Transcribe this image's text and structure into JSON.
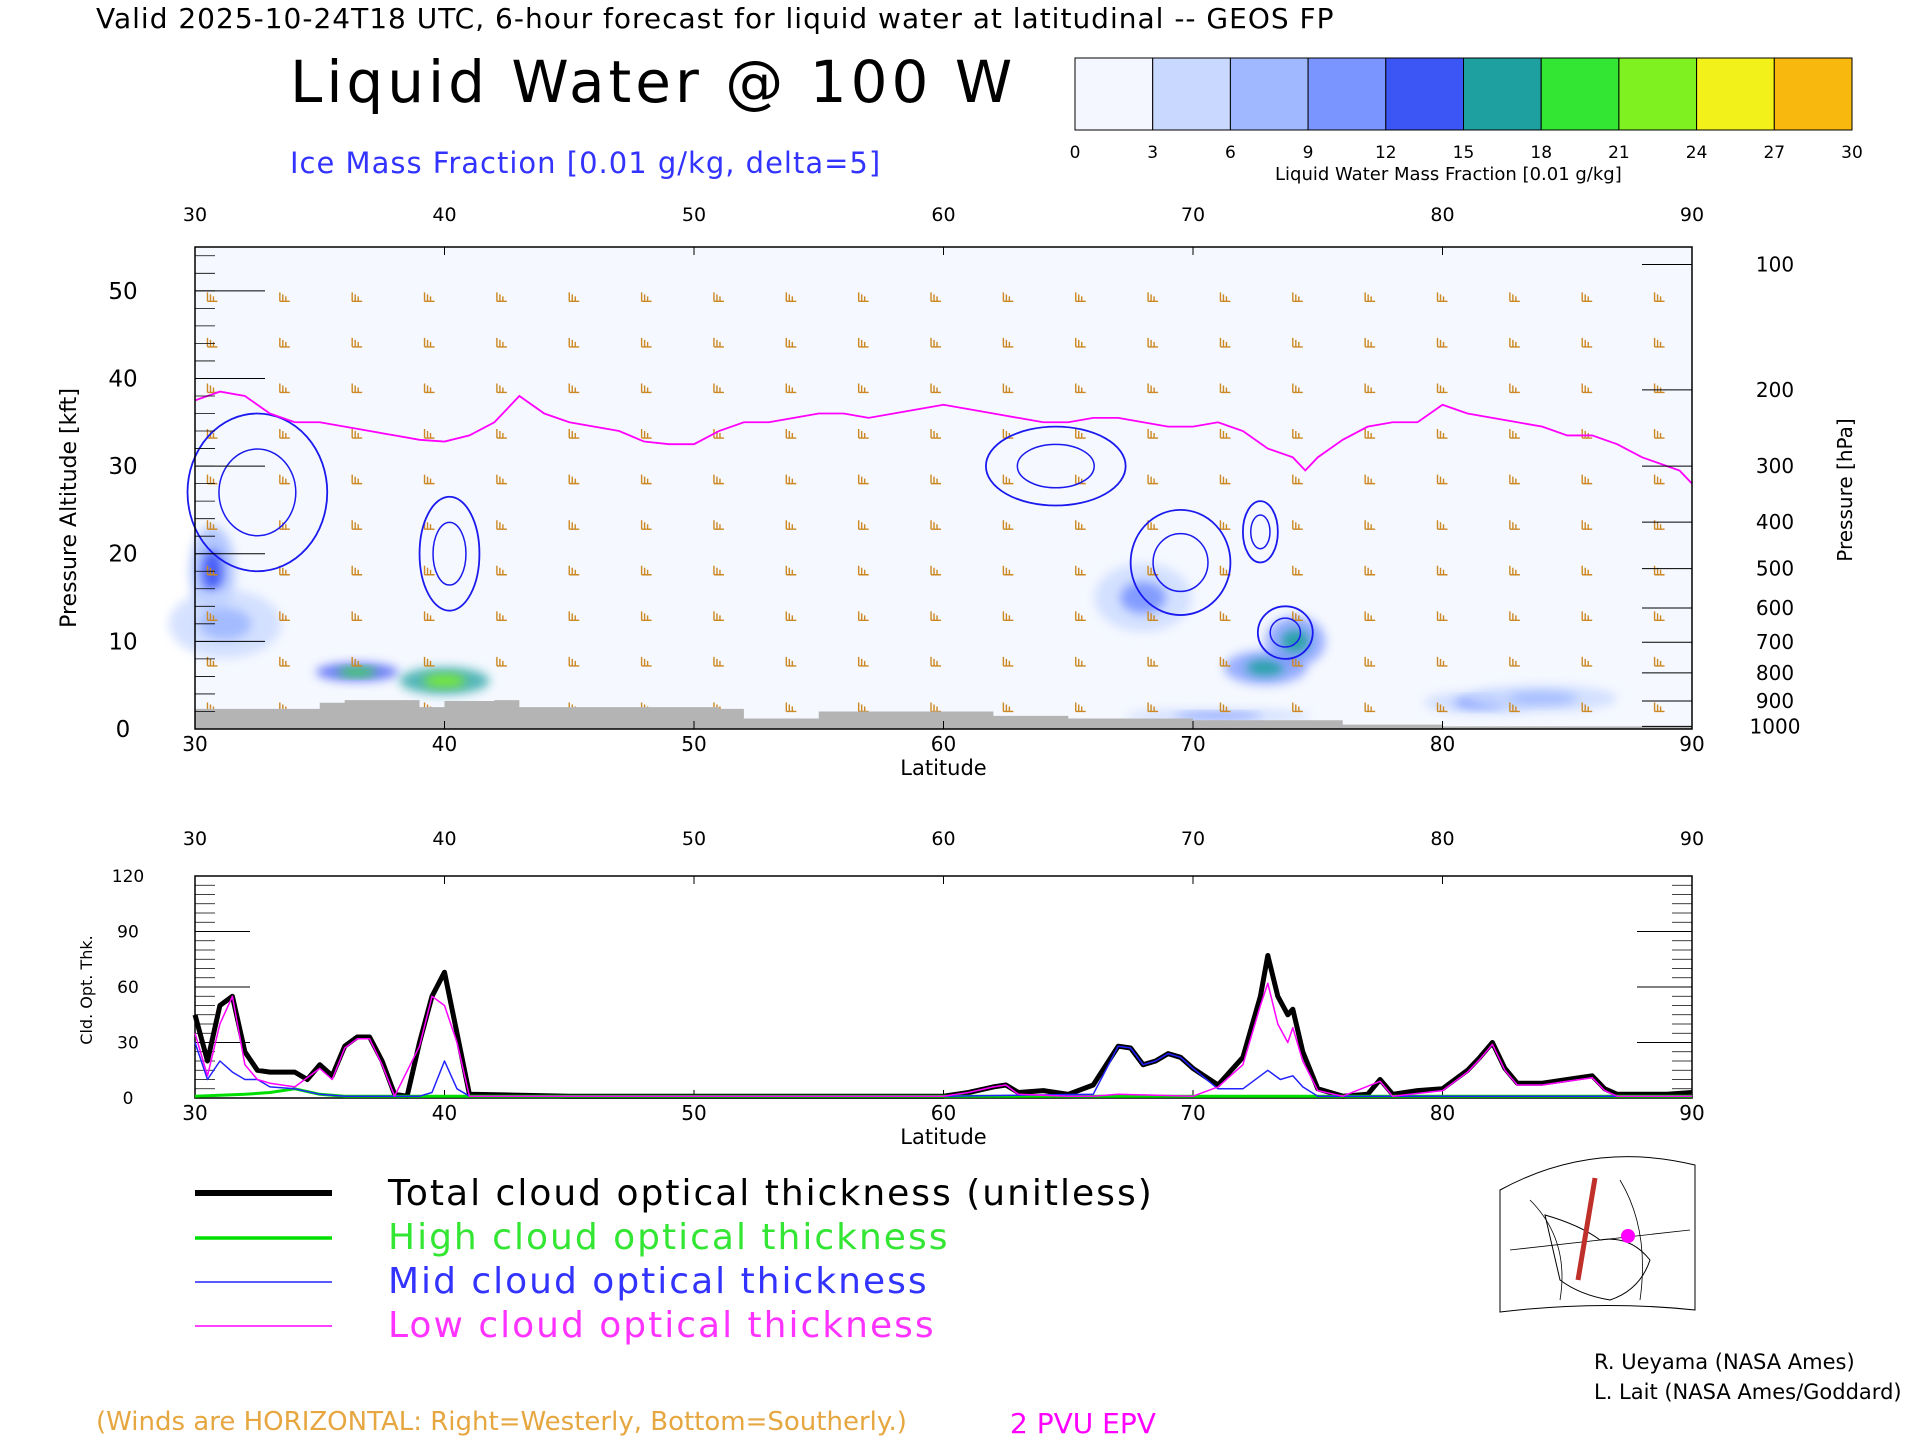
{
  "header": {
    "valid_line": "Valid 2025-10-24T18 UTC, 6-hour forecast for liquid water at latitudinal -- GEOS FP",
    "title": "Liquid Water @ 100 W",
    "ice_label": "Ice Mass Fraction [0.01 g/kg, delta=5]"
  },
  "colorbar": {
    "ticks": [
      "0",
      "3",
      "6",
      "9",
      "12",
      "15",
      "18",
      "21",
      "24",
      "27",
      "30"
    ],
    "colors": [
      "#f4f7ff",
      "#c8d8ff",
      "#9fb8ff",
      "#7a95ff",
      "#3c55f5",
      "#1fa0a0",
      "#33e633",
      "#7ff020",
      "#f2f21a",
      "#f9b80d",
      "#ff7a00"
    ],
    "label": "Liquid Water Mass Fraction [0.01 g/kg]"
  },
  "cross_section": {
    "top_ticks": [
      "30",
      "40",
      "50",
      "60",
      "70",
      "80",
      "90"
    ],
    "bottom_ticks": [
      "30",
      "40",
      "50",
      "60",
      "70",
      "80",
      "90"
    ],
    "xlabel": "Latitude",
    "ylabel": "Pressure Altitude [kft]",
    "y_ticks": [
      "0",
      "10",
      "20",
      "30",
      "40",
      "50"
    ],
    "right_label": "Pressure [hPa]",
    "right_ticks": [
      {
        "label": "100",
        "kft": 53
      },
      {
        "label": "200",
        "kft": 38.7
      },
      {
        "label": "300",
        "kft": 30
      },
      {
        "label": "400",
        "kft": 23.6
      },
      {
        "label": "500",
        "kft": 18.3
      },
      {
        "label": "600",
        "kft": 13.8
      },
      {
        "label": "700",
        "kft": 9.9
      },
      {
        "label": "800",
        "kft": 6.4
      },
      {
        "label": "900",
        "kft": 3.2
      },
      {
        "label": "1000",
        "kft": 0.3
      }
    ],
    "xlim": [
      30,
      90
    ],
    "ylim": [
      0,
      55
    ],
    "epv_2pvu": [
      [
        30,
        37.5
      ],
      [
        31,
        38.5
      ],
      [
        32,
        38
      ],
      [
        33,
        36
      ],
      [
        34,
        35
      ],
      [
        35,
        35
      ],
      [
        36,
        34.5
      ],
      [
        37,
        34
      ],
      [
        38,
        33.5
      ],
      [
        39,
        33
      ],
      [
        40,
        32.8
      ],
      [
        41,
        33.5
      ],
      [
        42,
        35
      ],
      [
        43,
        38
      ],
      [
        44,
        36
      ],
      [
        45,
        35
      ],
      [
        46,
        34.5
      ],
      [
        47,
        34
      ],
      [
        48,
        32.8
      ],
      [
        49,
        32.5
      ],
      [
        50,
        32.5
      ],
      [
        51,
        34
      ],
      [
        52,
        35
      ],
      [
        53,
        35
      ],
      [
        54,
        35.5
      ],
      [
        55,
        36
      ],
      [
        56,
        36
      ],
      [
        57,
        35.5
      ],
      [
        58,
        36
      ],
      [
        59,
        36.5
      ],
      [
        60,
        37
      ],
      [
        61,
        36.5
      ],
      [
        62,
        36
      ],
      [
        63,
        35.5
      ],
      [
        64,
        35
      ],
      [
        65,
        35
      ],
      [
        66,
        35.5
      ],
      [
        67,
        35.5
      ],
      [
        68,
        35
      ],
      [
        69,
        34.5
      ],
      [
        70,
        34.5
      ],
      [
        71,
        35
      ],
      [
        72,
        34
      ],
      [
        73,
        32
      ],
      [
        74,
        31
      ],
      [
        74.5,
        29.5
      ],
      [
        75,
        31
      ],
      [
        76,
        33
      ],
      [
        77,
        34.5
      ],
      [
        78,
        35
      ],
      [
        79,
        35
      ],
      [
        80,
        37
      ],
      [
        81,
        36
      ],
      [
        82,
        35.5
      ],
      [
        83,
        35
      ],
      [
        84,
        34.5
      ],
      [
        85,
        33.5
      ],
      [
        86,
        33.5
      ],
      [
        87,
        32.5
      ],
      [
        88,
        31
      ],
      [
        89,
        30
      ],
      [
        89.5,
        29.5
      ],
      [
        90,
        28
      ]
    ],
    "ice_contours": [
      {
        "center": [
          32.5,
          27
        ],
        "rx": 2.8,
        "ry": 9
      },
      {
        "center": [
          40.2,
          20
        ],
        "rx": 1.2,
        "ry": 6.5
      },
      {
        "center": [
          64.5,
          30
        ],
        "rx": 2.8,
        "ry": 4.5
      },
      {
        "center": [
          69.5,
          19
        ],
        "rx": 2,
        "ry": 6
      },
      {
        "center": [
          72.7,
          22.5
        ],
        "rx": 0.7,
        "ry": 3.5
      },
      {
        "center": [
          73.7,
          11
        ],
        "rx": 1.1,
        "ry": 3
      }
    ],
    "liquid_patches": [
      {
        "center": [
          30.7,
          18
        ],
        "rx": 0.6,
        "ry": 4,
        "level": 12
      },
      {
        "center": [
          31.2,
          12
        ],
        "rx": 1.5,
        "ry": 3,
        "level": 6
      },
      {
        "center": [
          36.5,
          6.5
        ],
        "rx": 1.1,
        "ry": 0.8,
        "level": 18
      },
      {
        "center": [
          40,
          5.5
        ],
        "rx": 1.2,
        "ry": 1.2,
        "level": 21
      },
      {
        "center": [
          68,
          15
        ],
        "rx": 1.3,
        "ry": 3,
        "level": 9
      },
      {
        "center": [
          72.9,
          7
        ],
        "rx": 1.1,
        "ry": 1.5,
        "level": 15
      },
      {
        "center": [
          74.1,
          10
        ],
        "rx": 0.8,
        "ry": 2.2,
        "level": 15
      },
      {
        "center": [
          81.5,
          3
        ],
        "rx": 1.5,
        "ry": 1,
        "level": 9
      },
      {
        "center": [
          84,
          3.5
        ],
        "rx": 2,
        "ry": 1.2,
        "level": 6
      },
      {
        "center": [
          71,
          1.5
        ],
        "rx": 2.5,
        "ry": 0.6,
        "level": 9
      }
    ],
    "terrain": [
      [
        30,
        2.3
      ],
      [
        33,
        2.3
      ],
      [
        34,
        2.3
      ],
      [
        35,
        3
      ],
      [
        36,
        3.3
      ],
      [
        38,
        3.3
      ],
      [
        39,
        2.5
      ],
      [
        40,
        3.2
      ],
      [
        42,
        3.3
      ],
      [
        43,
        2.5
      ],
      [
        50,
        2.5
      ],
      [
        51,
        2.3
      ],
      [
        52,
        1.2
      ],
      [
        55,
        2
      ],
      [
        60,
        2
      ],
      [
        62,
        1.5
      ],
      [
        65,
        1.2
      ],
      [
        70,
        1
      ],
      [
        75,
        1
      ],
      [
        76,
        0.5
      ],
      [
        80,
        0.3
      ],
      [
        90,
        0.3
      ]
    ]
  },
  "optical_thickness": {
    "top_ticks": [
      "30",
      "40",
      "50",
      "60",
      "70",
      "80",
      "90"
    ],
    "bottom_ticks": [
      "30",
      "40",
      "50",
      "60",
      "70",
      "80",
      "90"
    ],
    "xlabel": "Latitude",
    "ylabel": "Cld. Opt. Thk.",
    "y_ticks": [
      "0",
      "30",
      "60",
      "90",
      "120"
    ],
    "xlim": [
      30,
      90
    ],
    "ylim": [
      0,
      120
    ],
    "series": [
      {
        "name": "Total cloud optical thickness (unitless)",
        "color": "#000000",
        "width": 5,
        "points": [
          [
            30,
            45
          ],
          [
            30.5,
            20
          ],
          [
            31,
            50
          ],
          [
            31.5,
            55
          ],
          [
            32,
            25
          ],
          [
            32.5,
            15
          ],
          [
            33,
            14
          ],
          [
            34,
            14
          ],
          [
            34.5,
            10
          ],
          [
            35,
            18
          ],
          [
            35.5,
            12
          ],
          [
            36,
            28
          ],
          [
            36.5,
            33
          ],
          [
            37,
            33
          ],
          [
            37.5,
            20
          ],
          [
            38,
            2
          ],
          [
            38.5,
            1
          ],
          [
            39,
            30
          ],
          [
            39.5,
            55
          ],
          [
            40,
            68
          ],
          [
            40.5,
            35
          ],
          [
            41,
            2
          ],
          [
            45,
            1
          ],
          [
            50,
            1
          ],
          [
            55,
            1
          ],
          [
            60,
            1
          ],
          [
            61,
            3
          ],
          [
            62,
            6
          ],
          [
            62.5,
            7
          ],
          [
            63,
            3
          ],
          [
            64,
            4
          ],
          [
            65,
            2
          ],
          [
            66,
            7
          ],
          [
            67,
            28
          ],
          [
            67.5,
            27
          ],
          [
            68,
            18
          ],
          [
            68.5,
            20
          ],
          [
            69,
            24
          ],
          [
            69.5,
            22
          ],
          [
            70,
            16
          ],
          [
            71,
            7
          ],
          [
            72,
            22
          ],
          [
            72.7,
            55
          ],
          [
            73,
            77
          ],
          [
            73.4,
            55
          ],
          [
            73.8,
            45
          ],
          [
            74,
            48
          ],
          [
            74.4,
            25
          ],
          [
            75,
            5
          ],
          [
            76,
            1
          ],
          [
            77,
            2
          ],
          [
            77.5,
            10
          ],
          [
            78,
            2
          ],
          [
            79,
            4
          ],
          [
            80,
            5
          ],
          [
            80.5,
            10
          ],
          [
            81,
            15
          ],
          [
            81.5,
            22
          ],
          [
            82,
            30
          ],
          [
            82.5,
            16
          ],
          [
            83,
            8
          ],
          [
            84,
            8
          ],
          [
            85,
            10
          ],
          [
            86,
            12
          ],
          [
            86.5,
            5
          ],
          [
            87,
            2
          ],
          [
            88,
            2
          ],
          [
            89,
            2
          ],
          [
            90,
            3
          ]
        ]
      },
      {
        "name": "High cloud optical thickness",
        "color": "#00e000",
        "width": 3,
        "points": [
          [
            30,
            1
          ],
          [
            32,
            2
          ],
          [
            33,
            3
          ],
          [
            34,
            5
          ],
          [
            35,
            2
          ],
          [
            36,
            1
          ],
          [
            40,
            1
          ],
          [
            50,
            1
          ],
          [
            60,
            1
          ],
          [
            70,
            1
          ],
          [
            80,
            1
          ],
          [
            90,
            1
          ]
        ]
      },
      {
        "name": "Mid cloud optical thickness",
        "color": "#2222ff",
        "width": 1.5,
        "points": [
          [
            30,
            30
          ],
          [
            30.5,
            10
          ],
          [
            31,
            20
          ],
          [
            31.5,
            14
          ],
          [
            32,
            10
          ],
          [
            32.5,
            10
          ],
          [
            33,
            6
          ],
          [
            34,
            5
          ],
          [
            35,
            2
          ],
          [
            36,
            1
          ],
          [
            39,
            1
          ],
          [
            39.5,
            3
          ],
          [
            40,
            20
          ],
          [
            40.5,
            5
          ],
          [
            41,
            1
          ],
          [
            60,
            1
          ],
          [
            66,
            2
          ],
          [
            67,
            28
          ],
          [
            67.5,
            27
          ],
          [
            68,
            18
          ],
          [
            68.5,
            20
          ],
          [
            69,
            24
          ],
          [
            69.5,
            22
          ],
          [
            70,
            16
          ],
          [
            71,
            5
          ],
          [
            72,
            5
          ],
          [
            73,
            15
          ],
          [
            73.5,
            10
          ],
          [
            74,
            12
          ],
          [
            74.4,
            6
          ],
          [
            75,
            1
          ],
          [
            90,
            1
          ]
        ]
      },
      {
        "name": "Low cloud optical thickness",
        "color": "#ff00ff",
        "width": 1.5,
        "points": [
          [
            30,
            35
          ],
          [
            30.5,
            12
          ],
          [
            31,
            40
          ],
          [
            31.5,
            55
          ],
          [
            32,
            18
          ],
          [
            32.5,
            10
          ],
          [
            33,
            8
          ],
          [
            34,
            6
          ],
          [
            35,
            16
          ],
          [
            35.5,
            10
          ],
          [
            36,
            27
          ],
          [
            36.5,
            32
          ],
          [
            37,
            32
          ],
          [
            37.5,
            18
          ],
          [
            38,
            1
          ],
          [
            39,
            28
          ],
          [
            39.5,
            55
          ],
          [
            40,
            50
          ],
          [
            40.5,
            30
          ],
          [
            41,
            1
          ],
          [
            55,
            1
          ],
          [
            60,
            1
          ],
          [
            61,
            3
          ],
          [
            62,
            6
          ],
          [
            62.5,
            7
          ],
          [
            63,
            2
          ],
          [
            65,
            1
          ],
          [
            66,
            1
          ],
          [
            67,
            2
          ],
          [
            70,
            1
          ],
          [
            71,
            6
          ],
          [
            72,
            18
          ],
          [
            72.7,
            50
          ],
          [
            73,
            62
          ],
          [
            73.4,
            40
          ],
          [
            73.8,
            30
          ],
          [
            74,
            38
          ],
          [
            74.4,
            20
          ],
          [
            75,
            4
          ],
          [
            76,
            1
          ],
          [
            77.5,
            9
          ],
          [
            78,
            1
          ],
          [
            80,
            4
          ],
          [
            80.5,
            9
          ],
          [
            81,
            14
          ],
          [
            81.5,
            21
          ],
          [
            82,
            29
          ],
          [
            82.5,
            15
          ],
          [
            83,
            7
          ],
          [
            84,
            7
          ],
          [
            85,
            9
          ],
          [
            86,
            11
          ],
          [
            86.5,
            4
          ],
          [
            87,
            1
          ],
          [
            90,
            1
          ]
        ]
      }
    ]
  },
  "legend": {
    "total": "Total cloud optical thickness (unitless)",
    "high": "High cloud optical thickness",
    "mid": "Mid cloud optical thickness",
    "low": "Low cloud optical thickness"
  },
  "credits": {
    "line1": "R. Ueyama (NASA Ames)",
    "line2": "L. Lait (NASA Ames/Goddard)"
  },
  "footer": {
    "winds_note": "(Winds are HORIZONTAL: Right=Westerly, Bottom=Southerly.)",
    "pvu_note": "2 PVU EPV"
  }
}
